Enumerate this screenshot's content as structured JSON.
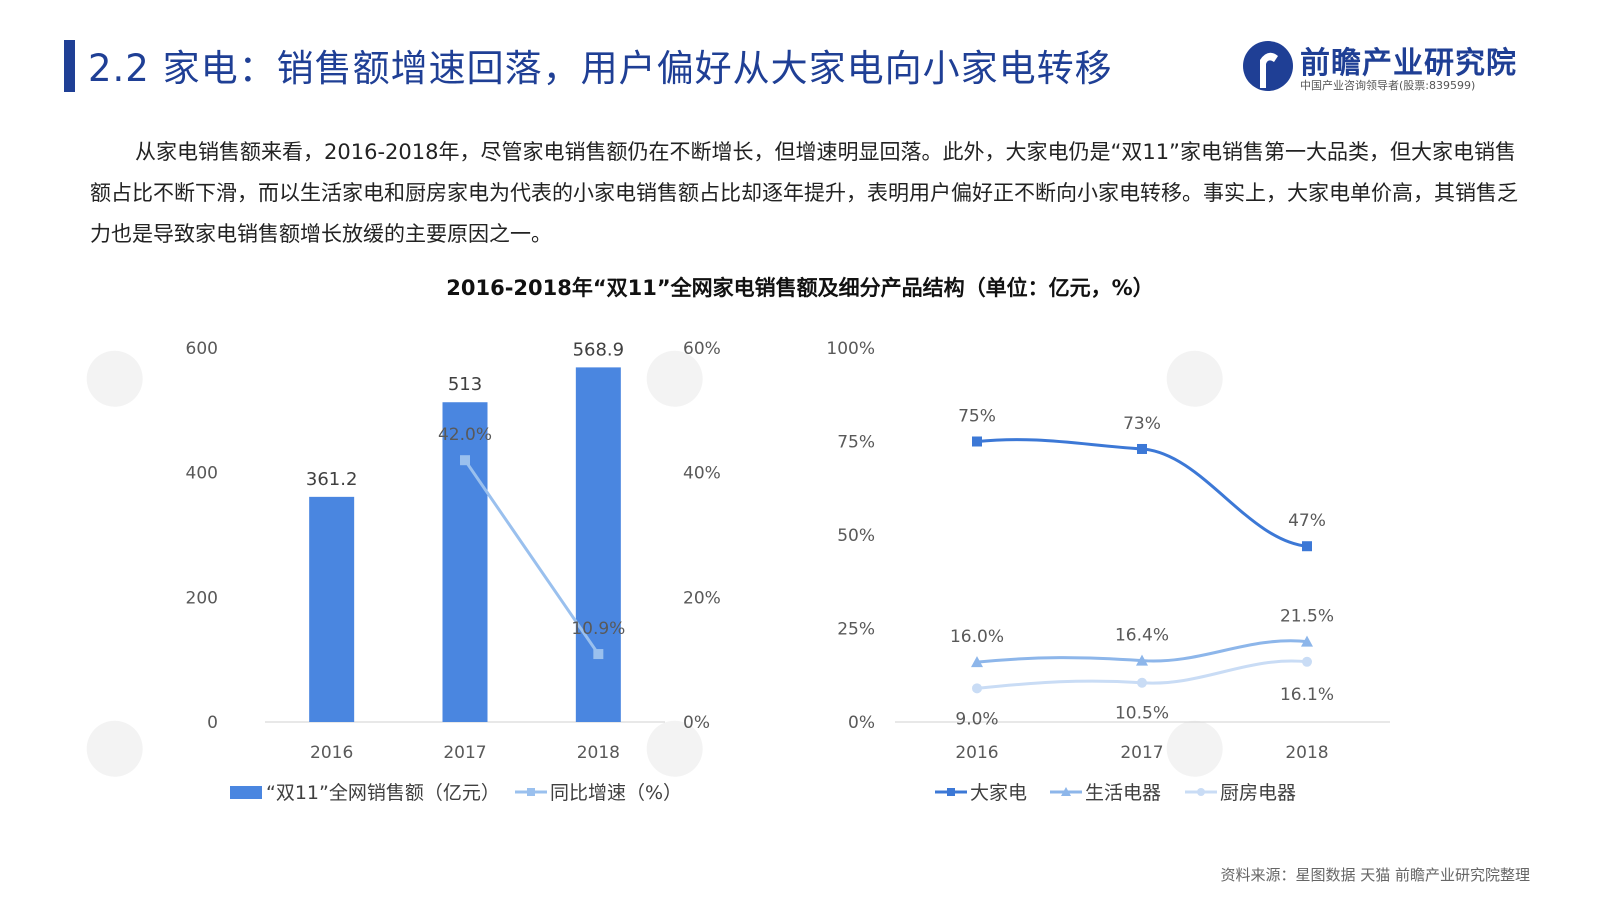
{
  "header": {
    "title": "2.2 家电：销售额增速回落，用户偏好从大家电向小家电转移",
    "logo_name": "前瞻产业研究院",
    "logo_sub": "中国产业咨询领导者(股票:839599)"
  },
  "body_text": "从家电销售额来看，2016-2018年，尽管家电销售额仍在不断增长，但增速明显回落。此外，大家电仍是“双11”家电销售第一大品类，但大家电销售额占比不断下滑，而以生活家电和厨房家电为代表的小家电销售额占比却逐年提升，表明用户偏好正不断向小家电转移。事实上，大家电单价高，其销售乏力也是导致家电销售额增长放缓的主要原因之一。",
  "chart_title": "2016-2018年“双11”全网家电销售额及细分产品结构（单位：亿元，%）",
  "source": "资料来源：星图数据 天猫 前瞻产业研究院整理",
  "colors": {
    "title_blue": "#1f3f95",
    "bar": "#4a86e0",
    "growth_line": "#9ac0ee",
    "big": "#3c78d6",
    "life": "#8db6ea",
    "kitchen": "#c9dcf5"
  },
  "chart_data": [
    {
      "type": "bar",
      "categories": [
        "2016",
        "2017",
        "2018"
      ],
      "series": [
        {
          "name": "“双11”全网销售额（亿元）",
          "type": "bar",
          "axis": "left",
          "values": [
            361.2,
            513,
            568.9
          ],
          "labels": [
            "361.2",
            "513",
            "568.9"
          ]
        },
        {
          "name": "同比增速（%）",
          "type": "line",
          "axis": "right",
          "x": [
            "2017",
            "2018"
          ],
          "values": [
            42.0,
            10.9
          ],
          "labels": [
            "42.0%",
            "10.9%"
          ]
        }
      ],
      "yleft": {
        "ticks": [
          "600",
          "400",
          "200",
          "0"
        ],
        "values": [
          600,
          400,
          200,
          0
        ],
        "lim": [
          0,
          600
        ]
      },
      "yright": {
        "ticks": [
          "60%",
          "40%",
          "20%",
          "0%"
        ],
        "values": [
          60,
          40,
          20,
          0
        ],
        "lim": [
          0,
          60
        ]
      },
      "legend": "bottom"
    },
    {
      "type": "line",
      "categories": [
        "2016",
        "2017",
        "2018"
      ],
      "series": [
        {
          "name": "大家电",
          "values": [
            75,
            73,
            47
          ],
          "labels": [
            "75%",
            "73%",
            "47%"
          ]
        },
        {
          "name": "生活电器",
          "values": [
            16.0,
            16.4,
            21.5
          ],
          "labels": [
            "16.0%",
            "16.4%",
            "21.5%"
          ]
        },
        {
          "name": "厨房电器",
          "values": [
            9.0,
            10.5,
            16.1
          ],
          "labels": [
            "9.0%",
            "10.5%",
            "16.1%"
          ]
        }
      ],
      "y": {
        "ticks": [
          "100%",
          "75%",
          "50%",
          "25%",
          "0%"
        ],
        "values": [
          100,
          75,
          50,
          25,
          0
        ],
        "lim": [
          0,
          100
        ]
      },
      "legend": "bottom"
    }
  ]
}
